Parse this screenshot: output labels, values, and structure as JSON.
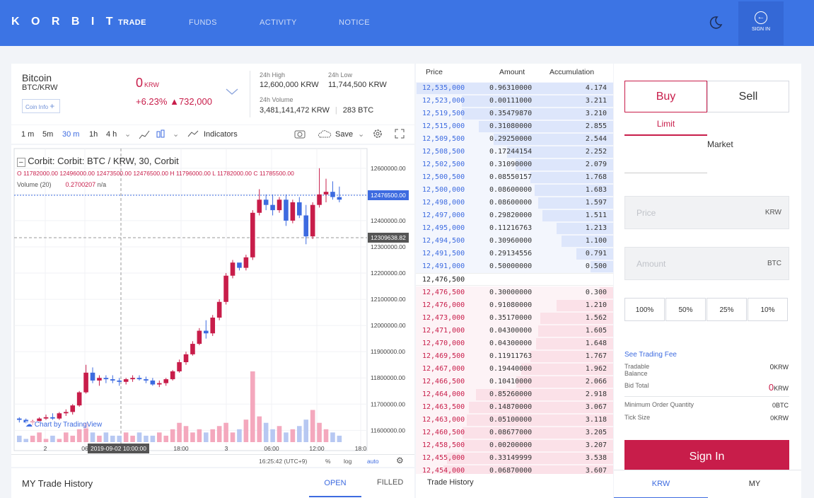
{
  "nav": {
    "logo": "K O R B I T",
    "trade": "TRADE",
    "funds": "FUNDS",
    "activity": "ACTIVITY",
    "notice": "NOTICE",
    "signin": "SIGN IN"
  },
  "ticker": {
    "name": "Bitcoin",
    "pair": "BTC/KRW",
    "coin_info": "Coin Info",
    "price": "0",
    "currency": "KRW",
    "change": "+6.23%",
    "change_abs": "▲732,000",
    "high_label": "24h High",
    "high": "12,600,000 KRW",
    "low_label": "24h Low",
    "low": "11,744,500 KRW",
    "vol_label": "24h Volume",
    "vol": "3,481,141,472 KRW",
    "vol_btc": "283 BTC"
  },
  "chart_toolbar": {
    "i1": "1 m",
    "i2": "5m",
    "i3": "30 m",
    "i4": "1h",
    "i5": "4 h",
    "indicators": "Indicators",
    "save": "Save"
  },
  "chart_legend": {
    "title": "Corbit: Corbit: BTC / KRW, 30, Corbit",
    "ohlc": "O 11782000.00  12496000.00  12473500.00  12476500.00  H 11796000.00  L 11782000.00  C 11785500.00",
    "volume": "Volume (20)",
    "volume_val": "0.2700207",
    "volume_na": "n/a",
    "watermark": "Chart by TradingView",
    "time": "16:25:42 (UTC+9)",
    "pct": "%",
    "log": "log",
    "auto": "auto",
    "cursor_date": "2019-09-02 10:00:00",
    "price_label": "12476500.00",
    "cross_label": "12309638.82"
  },
  "chart_data": {
    "type": "candlestick",
    "title": "Corbit: Corbit: BTC / KRW, 30, Corbit",
    "y_ticks": [
      "12600000.00",
      "12500000.00",
      "12400000.00",
      "12300000.00",
      "12200000.00",
      "12100000.00",
      "12000000.00",
      "11900000.00",
      "11800000.00",
      "11700000.00",
      "11600000.00"
    ],
    "x_ticks": [
      "2",
      "06",
      "18:00",
      "3",
      "06:00",
      "12:00",
      "18:0"
    ],
    "ylim": [
      11555000,
      12640000
    ],
    "candles": [
      [
        11645000,
        11650000,
        11630000,
        11640000
      ],
      [
        11640000,
        11645000,
        11625000,
        11630000
      ],
      [
        11630000,
        11640000,
        11620000,
        11635000
      ],
      [
        11635000,
        11650000,
        11630000,
        11645000
      ],
      [
        11645000,
        11660000,
        11640000,
        11650000
      ],
      [
        11650000,
        11665000,
        11640000,
        11645000
      ],
      [
        11645000,
        11670000,
        11640000,
        11665000
      ],
      [
        11665000,
        11680000,
        11655000,
        11670000
      ],
      [
        11670000,
        11700000,
        11660000,
        11695000
      ],
      [
        11695000,
        11750000,
        11690000,
        11745000
      ],
      [
        11745000,
        11850000,
        11740000,
        11820000
      ],
      [
        11820000,
        11840000,
        11780000,
        11790000
      ],
      [
        11790000,
        11810000,
        11770000,
        11800000
      ],
      [
        11800000,
        11810000,
        11780000,
        11795000
      ],
      [
        11795000,
        11810000,
        11780000,
        11790000
      ],
      [
        11790000,
        11800000,
        11770000,
        11785000
      ],
      [
        11785000,
        11800000,
        11775000,
        11795000
      ],
      [
        11795000,
        11810000,
        11785000,
        11800000
      ],
      [
        11800000,
        11810000,
        11790000,
        11795000
      ],
      [
        11795000,
        11805000,
        11780000,
        11790000
      ],
      [
        11790000,
        11800000,
        11770000,
        11775000
      ],
      [
        11775000,
        11790000,
        11765000,
        11780000
      ],
      [
        11780000,
        11800000,
        11770000,
        11795000
      ],
      [
        11795000,
        11830000,
        11790000,
        11825000
      ],
      [
        11825000,
        11870000,
        11820000,
        11860000
      ],
      [
        11860000,
        11900000,
        11850000,
        11890000
      ],
      [
        11890000,
        11940000,
        11885000,
        11930000
      ],
      [
        11930000,
        11990000,
        11925000,
        11980000
      ],
      [
        11980000,
        12020000,
        11950000,
        11970000
      ],
      [
        11970000,
        12040000,
        11960000,
        12030000
      ],
      [
        12030000,
        12100000,
        12020000,
        12090000
      ],
      [
        12090000,
        12200000,
        12080000,
        12190000
      ],
      [
        12190000,
        12250000,
        12180000,
        12240000
      ],
      [
        12240000,
        12230000,
        12210000,
        12220000
      ],
      [
        12220000,
        12270000,
        12210000,
        12260000
      ],
      [
        12260000,
        12440000,
        12250000,
        12430000
      ],
      [
        12430000,
        12520000,
        12420000,
        12480000
      ],
      [
        12480000,
        12500000,
        12440000,
        12460000
      ],
      [
        12460000,
        12500000,
        12420000,
        12440000
      ],
      [
        12440000,
        12490000,
        12430000,
        12480000
      ],
      [
        12480000,
        12500000,
        12380000,
        12400000
      ],
      [
        12400000,
        12480000,
        12390000,
        12470000
      ],
      [
        12470000,
        12490000,
        12410000,
        12420000
      ],
      [
        12420000,
        12460000,
        12310000,
        12340000
      ],
      [
        12340000,
        12470000,
        12330000,
        12460000
      ],
      [
        12460000,
        12600000,
        12450000,
        12500000
      ],
      [
        12500000,
        12560000,
        12470000,
        12510000
      ],
      [
        12510000,
        12550000,
        12480000,
        12490000
      ],
      [
        12490000,
        12530000,
        12470000,
        12480000
      ]
    ],
    "volumes": [
      2,
      1,
      2,
      3,
      1,
      2,
      1,
      3,
      2,
      4,
      6,
      3,
      2,
      3,
      2,
      2,
      3,
      2,
      3,
      2,
      2,
      3,
      2,
      4,
      6,
      5,
      3,
      4,
      3,
      4,
      5,
      6,
      3,
      4,
      7,
      22,
      8,
      6,
      4,
      5,
      3,
      4,
      5,
      7,
      10,
      6,
      4,
      3,
      2
    ]
  },
  "orderbook": {
    "h_price": "Price",
    "h_amount": "Amount",
    "h_acc": "Accumulation",
    "asks": [
      [
        "12,535,000",
        "0.96310000",
        "4.174"
      ],
      [
        "12,523,000",
        "0.00111000",
        "3.211"
      ],
      [
        "12,519,500",
        "0.35479870",
        "3.210"
      ],
      [
        "12,515,000",
        "0.31080000",
        "2.855"
      ],
      [
        "12,509,500",
        "0.29250000",
        "2.544"
      ],
      [
        "12,508,500",
        "0.17244154",
        "2.252"
      ],
      [
        "12,502,500",
        "0.31090000",
        "2.079"
      ],
      [
        "12,500,500",
        "0.08550157",
        "1.768"
      ],
      [
        "12,500,000",
        "0.08600000",
        "1.683"
      ],
      [
        "12,498,000",
        "0.08600000",
        "1.597"
      ],
      [
        "12,497,000",
        "0.29820000",
        "1.511"
      ],
      [
        "12,495,000",
        "0.11216763",
        "1.213"
      ],
      [
        "12,494,500",
        "0.30960000",
        "1.100"
      ],
      [
        "12,491,500",
        "0.29134556",
        "0.791"
      ],
      [
        "12,491,000",
        "0.50000000",
        "0.500"
      ]
    ],
    "mid": "12,476,500",
    "bids": [
      [
        "12,476,500",
        "0.30000000",
        "0.300"
      ],
      [
        "12,476,000",
        "0.91080000",
        "1.210"
      ],
      [
        "12,473,000",
        "0.35170000",
        "1.562"
      ],
      [
        "12,471,000",
        "0.04300000",
        "1.605"
      ],
      [
        "12,470,000",
        "0.04300000",
        "1.648"
      ],
      [
        "12,469,500",
        "0.11911763",
        "1.767"
      ],
      [
        "12,467,000",
        "0.19440000",
        "1.962"
      ],
      [
        "12,466,500",
        "0.10410000",
        "2.066"
      ],
      [
        "12,464,000",
        "0.85260000",
        "2.918"
      ],
      [
        "12,463,500",
        "0.14870000",
        "3.067"
      ],
      [
        "12,463,000",
        "0.05100000",
        "3.118"
      ],
      [
        "12,460,500",
        "0.08677000",
        "3.205"
      ],
      [
        "12,458,500",
        "0.00200000",
        "3.207"
      ],
      [
        "12,455,000",
        "0.33149999",
        "3.538"
      ],
      [
        "12,454,000",
        "0.06870000",
        "3.607"
      ]
    ],
    "max_acc": 4.174
  },
  "order_form": {
    "buy": "Buy",
    "sell": "Sell",
    "limit": "Limit",
    "market": "Market",
    "price_ph": "Price",
    "price_unit": "KRW",
    "amount_ph": "Amount",
    "amount_unit": "BTC",
    "p100": "100%",
    "p50": "50%",
    "p25": "25%",
    "p10": "10%",
    "fee": "See Trading Fee",
    "tradable": "Tradable\nBalance",
    "tradable_val": "0",
    "tradable_unit": "KRW",
    "bid_total": "Bid Total",
    "bid_total_val": "0",
    "bid_total_unit": "KRW",
    "min_qty": "Minimum Order Quantity",
    "min_qty_val": "0",
    "min_qty_unit": "BTC",
    "tick": "Tick Size",
    "tick_val": "0",
    "tick_unit": "KRW",
    "signin": "Sign In"
  },
  "bottom": {
    "my_trade": "MY Trade History",
    "open": "OPEN",
    "filled": "FILLED",
    "trade_history": "Trade History",
    "krw": "KRW",
    "my": "MY"
  },
  "colors": {
    "header": "#3c74e4",
    "up": "#c81d4a",
    "down": "#3d6be0",
    "ask_bar": "#dde6fb",
    "bid_bar": "#fbe1e8"
  }
}
